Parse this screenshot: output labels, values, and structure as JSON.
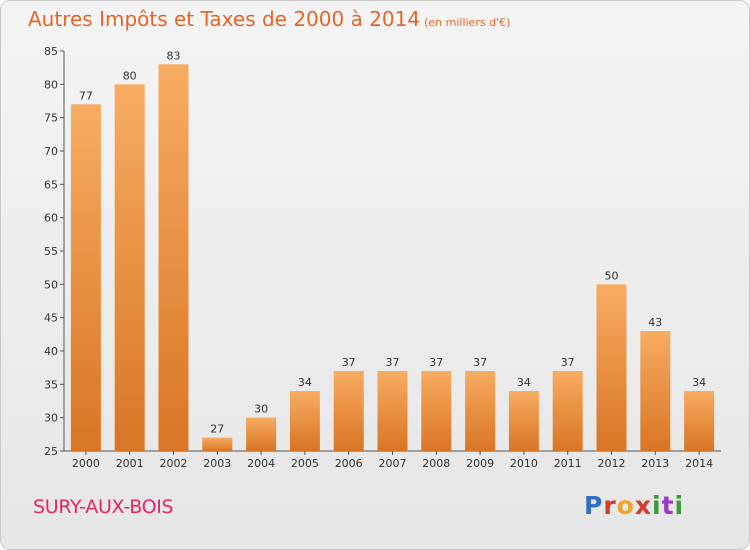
{
  "title": "Autres Impôts et Taxes de 2000 à 2014",
  "subtitle": "(en milliers d'€)",
  "commune": "SURY-AUX-BOIS",
  "logo": "Proxiti",
  "colors": {
    "title": "#e2662a",
    "bar_light": "#f6a860",
    "bar_dark": "#d8782a",
    "commune": "#e2266a"
  },
  "chart_data": {
    "type": "bar",
    "categories": [
      "2000",
      "2001",
      "2002",
      "2003",
      "2004",
      "2005",
      "2006",
      "2007",
      "2008",
      "2009",
      "2010",
      "2011",
      "2012",
      "2013",
      "2014"
    ],
    "values": [
      77,
      80,
      83,
      27,
      30,
      34,
      37,
      37,
      37,
      37,
      34,
      37,
      50,
      43,
      34
    ],
    "ylim": [
      25,
      85
    ],
    "yticks": [
      25,
      30,
      35,
      40,
      45,
      50,
      55,
      60,
      65,
      70,
      75,
      80,
      85
    ],
    "title": "Autres Impôts et Taxes de 2000 à 2014",
    "xlabel": "",
    "ylabel": "",
    "grid": false,
    "data_labels": true
  }
}
